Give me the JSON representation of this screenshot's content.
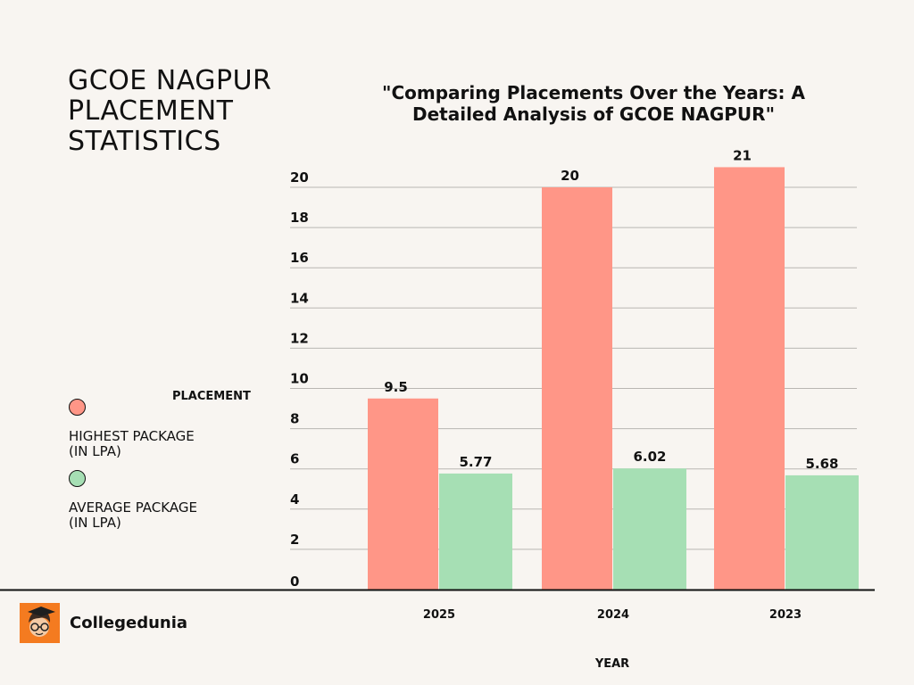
{
  "page_title_lines": [
    "GCOE NAGPUR",
    "PLACEMENT",
    "STATISTICS"
  ],
  "legend": {
    "heading": "PLACEMENT",
    "items": [
      {
        "lines": [
          "HIGHEST PACKAGE",
          "(IN LPA)"
        ],
        "color": "#ff9687"
      },
      {
        "lines": [
          "AVERAGE PACKAGE",
          "(IN LPA)"
        ],
        "color": "#a6dfb4"
      }
    ]
  },
  "brand": {
    "name": "Collegedunia",
    "logo_icon": "collegedunia-mascot-icon",
    "logo_color": "#f47b20"
  },
  "chart_data": {
    "type": "bar",
    "title": "\"Comparing Placements Over the Years: A Detailed Analysis of GCOE NAGPUR\"",
    "xlabel": "YEAR",
    "ylabel": "",
    "categories": [
      "2025",
      "2024",
      "2023"
    ],
    "series": [
      {
        "name": "HIGHEST PACKAGE (IN LPA)",
        "values": [
          9.5,
          20,
          21
        ],
        "labels": [
          "9.5",
          "20",
          "21"
        ],
        "color": "#ff9687"
      },
      {
        "name": "AVERAGE PACKAGE (IN LPA)",
        "values": [
          5.77,
          6.02,
          5.68
        ],
        "labels": [
          "5.77",
          "6.02",
          "5.68"
        ],
        "color": "#a6dfb4"
      }
    ],
    "yticks": [
      "0",
      "2",
      "4",
      "6",
      "8",
      "10",
      "12",
      "14",
      "16",
      "18",
      "20"
    ],
    "ylim": [
      0,
      22
    ],
    "grid": true,
    "legend_position": "left"
  }
}
